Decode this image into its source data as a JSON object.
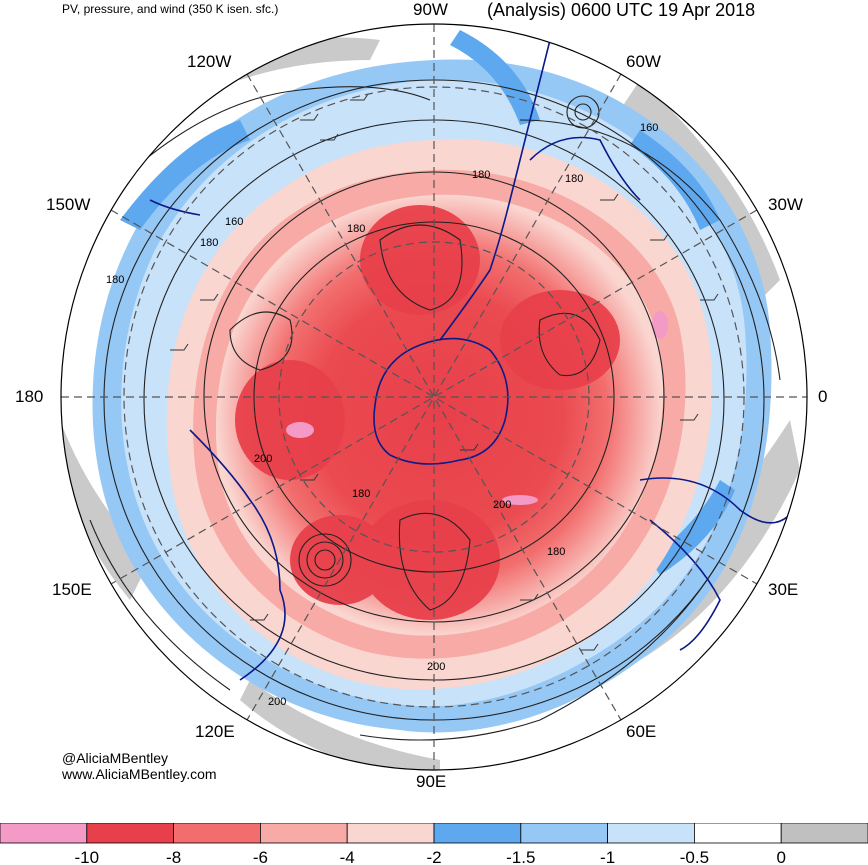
{
  "header": {
    "product_title": "PV, pressure, and wind (350 K isen. sfc.)",
    "analysis_title": "(Analysis) 0600 UTC 19 Apr 2018"
  },
  "credit": {
    "handle": "@AliciaMBentley",
    "website": "www.AliciaMBentley.com"
  },
  "longitude_labels": [
    "90W",
    "60W",
    "30W",
    "0",
    "30E",
    "60E",
    "90E",
    "120E",
    "150E",
    "180",
    "150W",
    "120W"
  ],
  "contour_labels": [
    "160",
    "180",
    "160",
    "180",
    "180",
    "180",
    "180",
    "200",
    "180",
    "200",
    "180",
    "200",
    "200"
  ],
  "colorbar": {
    "colors": [
      "#f49ac6",
      "#e8404b",
      "#f26e6e",
      "#f7aaa6",
      "#fad6d0",
      "#5ea8f0",
      "#96c8f6",
      "#c8e2fa",
      "#ffffff",
      "#c0c0c0"
    ],
    "tick_labels": [
      "-10",
      "-8",
      "-6",
      "-4",
      "-2",
      "-1.5",
      "-1",
      "-0.5",
      "0"
    ]
  }
}
